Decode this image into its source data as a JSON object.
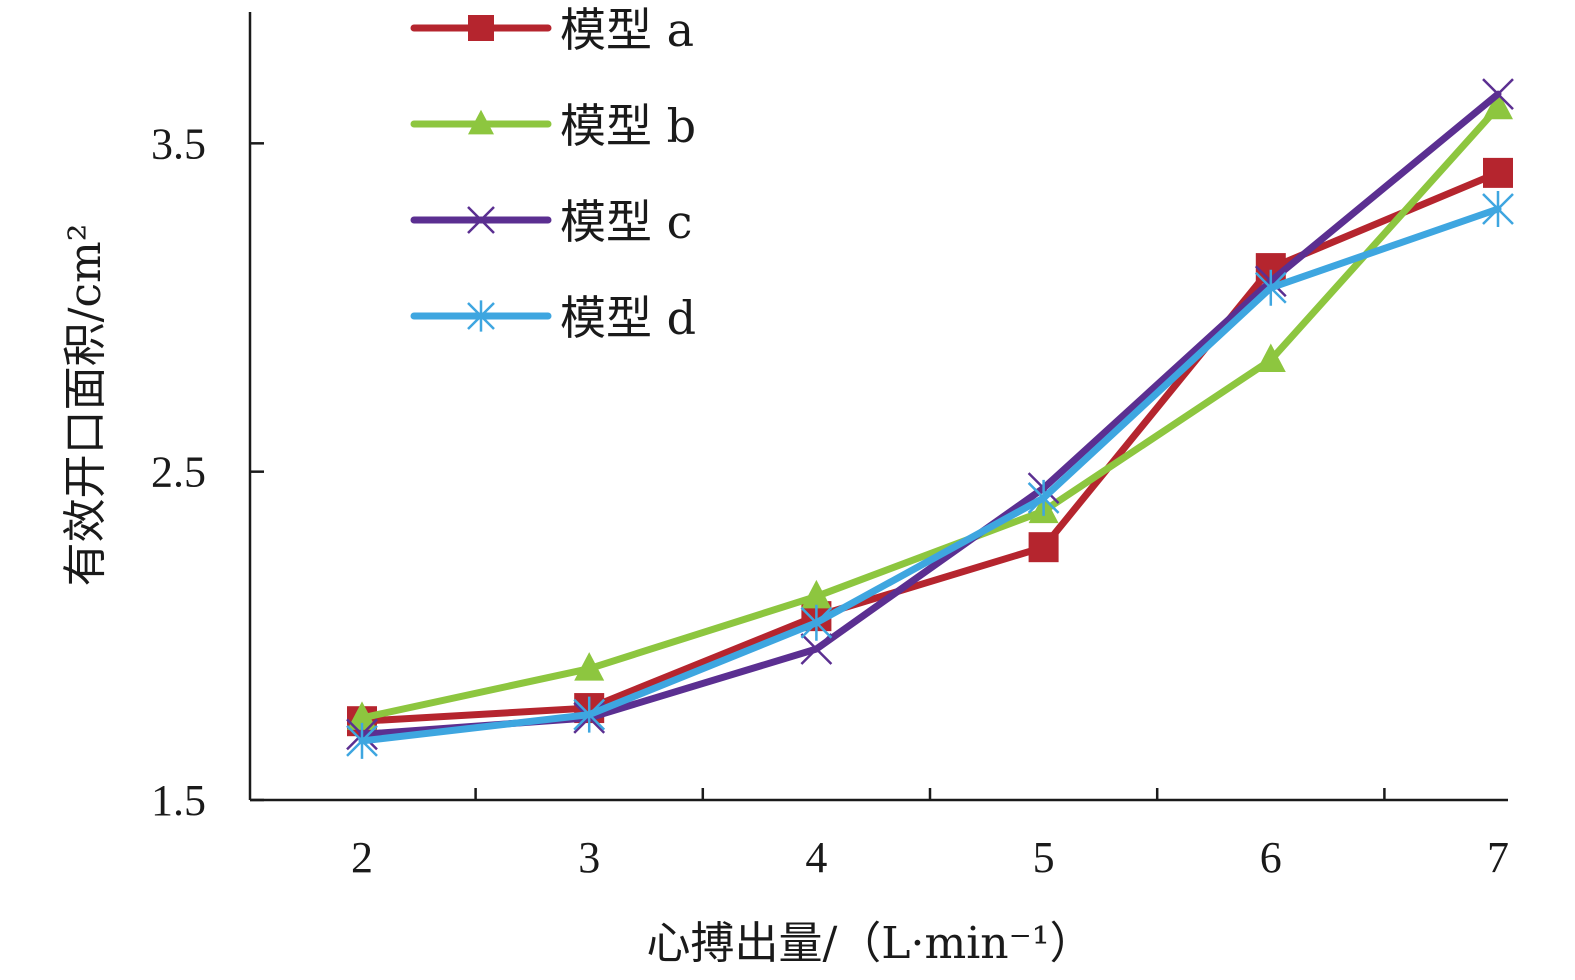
{
  "chart_data": {
    "type": "line",
    "title": "",
    "xlabel": "心搏出量/（L·min⁻¹）",
    "ylabel": "有效开口面积/cm²",
    "x": [
      2,
      3,
      4,
      5,
      6,
      7
    ],
    "x_tick_labels": [
      "2",
      "3",
      "4",
      "5",
      "6",
      "7"
    ],
    "ylim": [
      1.5,
      3.9
    ],
    "y_ticks": [
      1.5,
      2.5,
      3.5
    ],
    "y_tick_labels": [
      "1.5",
      "2.5",
      "3.5"
    ],
    "grid": false,
    "legend_position": "top-left",
    "series": [
      {
        "name": "模型 a",
        "marker": "square",
        "color": "#b5252e",
        "values": [
          1.74,
          1.78,
          2.06,
          2.27,
          3.12,
          3.41
        ]
      },
      {
        "name": "模型 b",
        "marker": "triangle",
        "color": "#8dc63f",
        "values": [
          1.75,
          1.9,
          2.12,
          2.38,
          2.84,
          3.61
        ]
      },
      {
        "name": "模型 c",
        "marker": "x",
        "color": "#5b2f91",
        "values": [
          1.7,
          1.75,
          1.96,
          2.45,
          3.08,
          3.65
        ]
      },
      {
        "name": "模型 d",
        "marker": "asterisk",
        "color": "#3ea6e0",
        "values": [
          1.68,
          1.76,
          2.04,
          2.42,
          3.06,
          3.3
        ]
      }
    ]
  }
}
